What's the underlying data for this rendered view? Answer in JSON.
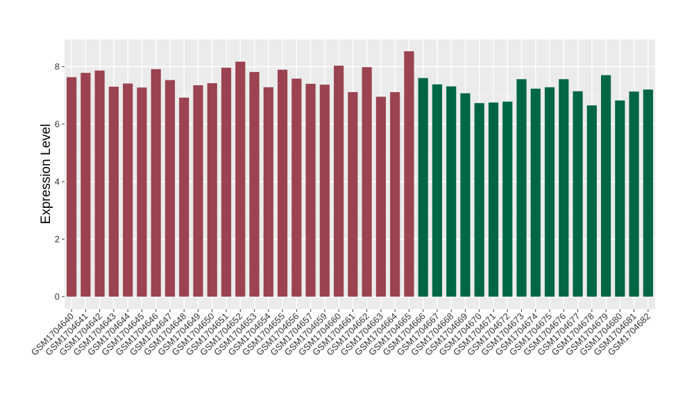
{
  "chart_data": {
    "type": "bar",
    "title": "",
    "xlabel": "",
    "ylabel": "Expression Level",
    "ylim": [
      0,
      8.9
    ],
    "yticks": [
      0,
      2,
      4,
      6,
      8
    ],
    "grid": true,
    "categories": [
      "GSM1704640",
      "GSM1704641",
      "GSM1704642",
      "GSM1704643",
      "GSM1704644",
      "GSM1704645",
      "GSM1704646",
      "GSM1704647",
      "GSM1704648",
      "GSM1704649",
      "GSM1704650",
      "GSM1704651",
      "GSM1704652",
      "GSM1704653",
      "GSM1704654",
      "GSM1704655",
      "GSM1704656",
      "GSM1704657",
      "GSM1704659",
      "GSM1704660",
      "GSM1704661",
      "GSM1704662",
      "GSM1704663",
      "GSM1704664",
      "GSM1704665",
      "GSM1704666",
      "GSM1704667",
      "GSM1704668",
      "GSM1704669",
      "GSM1704670",
      "GSM1704671",
      "GSM1704672",
      "GSM1704673",
      "GSM1704674",
      "GSM1704675",
      "GSM1704676",
      "GSM1704677",
      "GSM1704678",
      "GSM1704679",
      "GSM1704680",
      "GSM1704681",
      "GSM1704682"
    ],
    "values": [
      7.63,
      7.78,
      7.86,
      7.3,
      7.41,
      7.27,
      7.91,
      7.53,
      6.92,
      7.35,
      7.42,
      7.96,
      8.17,
      7.81,
      7.28,
      7.89,
      7.58,
      7.4,
      7.37,
      8.03,
      7.11,
      7.98,
      6.95,
      7.11,
      8.53,
      7.6,
      7.38,
      7.31,
      7.07,
      6.73,
      6.75,
      6.78,
      7.56,
      7.23,
      7.28,
      7.56,
      7.14,
      6.65,
      7.7,
      6.82,
      7.13,
      7.2
    ],
    "group_sizes": [
      25,
      17
    ],
    "colors": [
      "#9b4350",
      "#006644"
    ]
  }
}
